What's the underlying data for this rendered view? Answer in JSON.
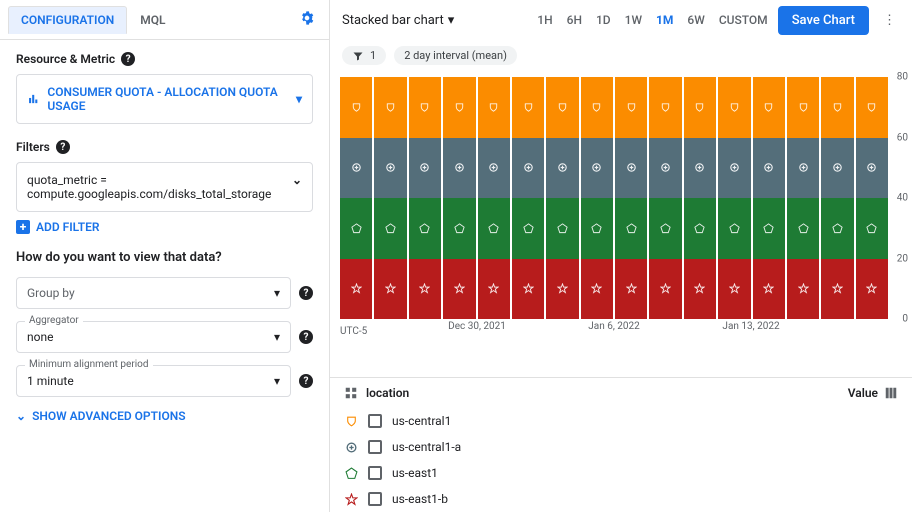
{
  "tabs": {
    "configuration": "CONFIGURATION",
    "mql": "MQL"
  },
  "resource_metric": {
    "heading": "Resource & Metric",
    "value": "CONSUMER QUOTA - ALLOCATION QUOTA USAGE"
  },
  "filters": {
    "heading": "Filters",
    "text_l1": "quota_metric =",
    "text_l2": "compute.googleapis.com/disks_total_storage",
    "add": "ADD FILTER"
  },
  "view": {
    "question": "How do you want to view that data?",
    "groupby_placeholder": "Group by",
    "aggregator_label": "Aggregator",
    "aggregator_value": "none",
    "period_label": "Minimum alignment period",
    "period_value": "1 minute"
  },
  "advanced": "SHOW ADVANCED OPTIONS",
  "topbar": {
    "type": "Stacked bar chart",
    "ranges": [
      "1H",
      "6H",
      "1D",
      "1W",
      "1M",
      "6W",
      "CUSTOM"
    ],
    "active_range": "1M",
    "save": "Save Chart"
  },
  "chips": {
    "filter_count": "1",
    "interval": "2 day interval (mean)"
  },
  "chart": {
    "ymax": 80,
    "ytick_step": 20,
    "timezone": "UTC-5",
    "background": "#ffffff",
    "n_bars": 16,
    "segments": [
      {
        "color": "#b71c1c",
        "value": 20,
        "marker": "star"
      },
      {
        "color": "#1e7b34",
        "value": 20,
        "marker": "pentagon"
      },
      {
        "color": "#546e7a",
        "value": 20,
        "marker": "cross"
      },
      {
        "color": "#fb8c00",
        "value": 20,
        "marker": "shield"
      }
    ],
    "xlabels": [
      {
        "pos_pct": 25,
        "text": "Dec 30, 2021"
      },
      {
        "pos_pct": 50,
        "text": "Jan 6, 2022"
      },
      {
        "pos_pct": 75,
        "text": "Jan 13, 2022"
      }
    ]
  },
  "legend": {
    "header": "location",
    "value_label": "Value",
    "rows": [
      {
        "name": "us-central1",
        "color": "#fb8c00",
        "marker": "shield"
      },
      {
        "name": "us-central1-a",
        "color": "#546e7a",
        "marker": "cross"
      },
      {
        "name": "us-east1",
        "color": "#1e7b34",
        "marker": "pentagon"
      },
      {
        "name": "us-east1-b",
        "color": "#b71c1c",
        "marker": "star"
      }
    ]
  }
}
